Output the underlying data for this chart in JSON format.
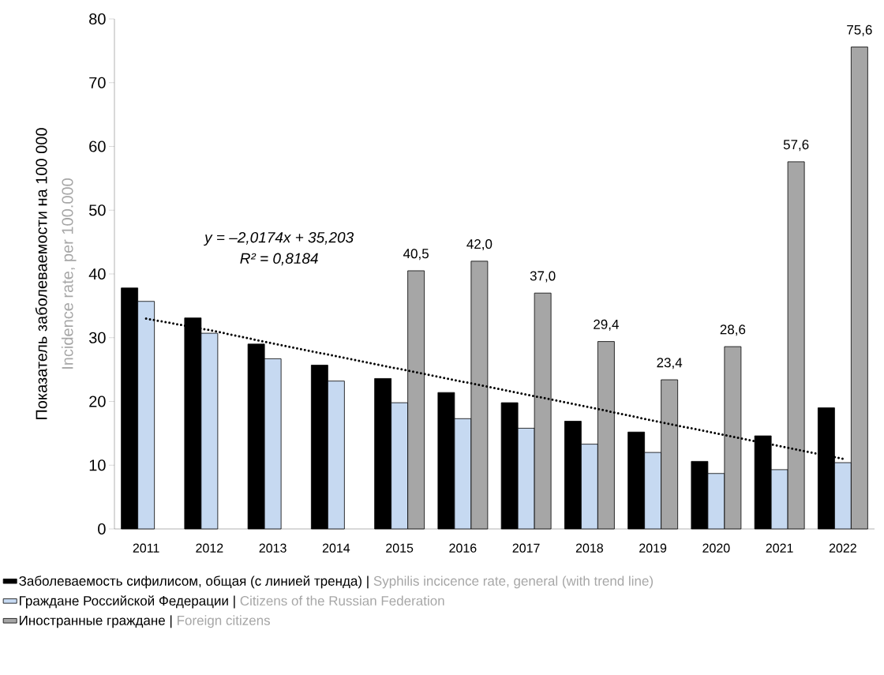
{
  "chart_data": {
    "type": "bar",
    "ylabel": "Показатель заболеваемости на 100 000",
    "categories": [
      "2011",
      "2012",
      "2013",
      "2014",
      "2015",
      "2016",
      "2017",
      "2018",
      "2019",
      "2020",
      "2021",
      "2022"
    ],
    "series": [
      {
        "name": "Заболеваемость сифилисом, общая (с линией тренда) | Syphilis incicence rate, general (with trend line)",
        "color": "#000000",
        "values": [
          37.8,
          33.1,
          29.0,
          25.7,
          23.6,
          21.4,
          19.8,
          16.9,
          15.2,
          10.6,
          14.6,
          19.0
        ]
      },
      {
        "name": "Граждане Российской Федерации | Citizens of the Russian Federation",
        "color": "#c6d9f1",
        "values": [
          35.7,
          30.7,
          26.7,
          23.2,
          19.8,
          17.3,
          15.8,
          13.3,
          12.0,
          8.7,
          9.3,
          10.4
        ]
      },
      {
        "name": "Иностранные граждане | Foreign citizens",
        "color": "#a6a6a6",
        "values": [
          null,
          null,
          null,
          null,
          40.5,
          42.0,
          37.0,
          29.4,
          23.4,
          28.6,
          57.6,
          75.6
        ],
        "value_labels": [
          null,
          null,
          null,
          null,
          "40,5",
          "42,0",
          "37,0",
          "29,4",
          "23,4",
          "28,6",
          "57,6",
          "75,6"
        ]
      },
      {
        "type": "line",
        "color": "#000000",
        "line_style": "dotted",
        "values": [
          33.0,
          31.2,
          29.1,
          27.1,
          25.1,
          23.1,
          21.1,
          19.1,
          17.0,
          15.0,
          13.0,
          11.0
        ]
      }
    ],
    "annotations": [
      "y = –2,0174x + 35,203",
      "R² = 0,8184",
      "Incidence rate, per 100.000"
    ],
    "ylim": [
      0,
      80
    ],
    "yticks": [
      0,
      10,
      20,
      30,
      40,
      50,
      60,
      70,
      80
    ],
    "grid": false,
    "legend": "bottom"
  }
}
